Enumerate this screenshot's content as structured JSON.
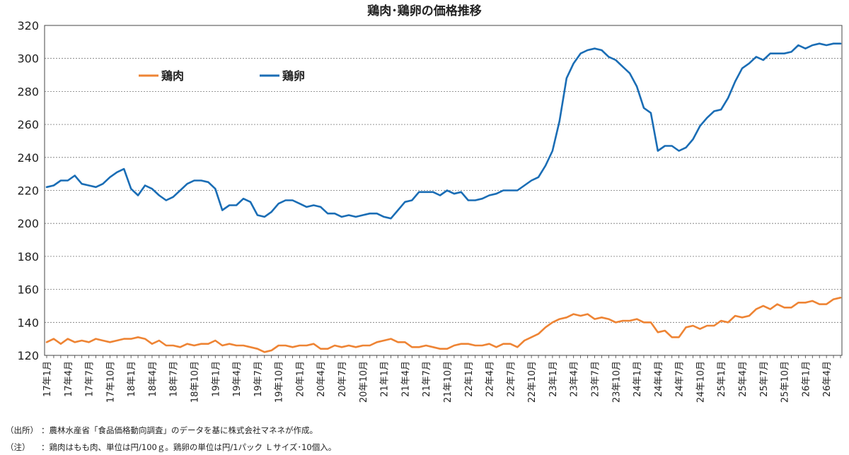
{
  "chart_data": {
    "type": "line",
    "title": "鶏肉･鶏卵の価格推移",
    "ylim": [
      120,
      320
    ],
    "yticks": [
      120,
      140,
      160,
      180,
      200,
      220,
      240,
      260,
      280,
      300,
      320
    ],
    "grid": true,
    "legend_position": "top-left",
    "x_tick_labels": [
      "17年1月",
      "17年4月",
      "17年7月",
      "17年10月",
      "18年1月",
      "18年4月",
      "18年7月",
      "18年10月",
      "19年1月",
      "19年4月",
      "19年7月",
      "19年10月",
      "20年1月",
      "20年4月",
      "20年7月",
      "20年10月",
      "21年1月",
      "21年4月",
      "21年7月",
      "21年10月",
      "22年1月",
      "22年4月",
      "22年7月",
      "22年10月",
      "23年1月",
      "23年4月",
      "23年7月",
      "23年10月",
      "24年1月",
      "24年4月",
      "24年7月",
      "24年10月",
      "25年1月",
      "25年4月",
      "25年7月",
      "25年10月",
      "26年1月",
      "26年4月"
    ],
    "series": [
      {
        "name": "鶏肉",
        "color": "#EE8434",
        "values": [
          128,
          130,
          127,
          130,
          128,
          129,
          128,
          130,
          129,
          128,
          129,
          130,
          130,
          131,
          130,
          127,
          129,
          126,
          126,
          125,
          127,
          126,
          127,
          127,
          129,
          126,
          127,
          126,
          126,
          125,
          124,
          122,
          123,
          126,
          126,
          125,
          126,
          126,
          127,
          124,
          124,
          126,
          125,
          126,
          125,
          126,
          126,
          128,
          129,
          130,
          128,
          128,
          125,
          125,
          126,
          125,
          124,
          124,
          126,
          127,
          127,
          126,
          126,
          127,
          125,
          127,
          127,
          125,
          129,
          131,
          133,
          137,
          140,
          142,
          143,
          145,
          144,
          145,
          142,
          143,
          142,
          140,
          141,
          141,
          142,
          140,
          140,
          134,
          135,
          131,
          131,
          137,
          138,
          136,
          138,
          138,
          141,
          140,
          144,
          143,
          144,
          148,
          150,
          148,
          151,
          149,
          149,
          152,
          152,
          153,
          151,
          151,
          154,
          155
        ]
      },
      {
        "name": "鶏卵",
        "color": "#1A6DB5",
        "values": [
          222,
          223,
          226,
          226,
          229,
          224,
          223,
          222,
          224,
          228,
          231,
          233,
          221,
          217,
          223,
          221,
          217,
          214,
          216,
          220,
          224,
          226,
          226,
          225,
          221,
          208,
          211,
          211,
          215,
          213,
          205,
          204,
          207,
          212,
          214,
          214,
          212,
          210,
          211,
          210,
          206,
          206,
          204,
          205,
          204,
          205,
          206,
          206,
          204,
          203,
          208,
          213,
          214,
          219,
          219,
          219,
          217,
          220,
          218,
          219,
          214,
          214,
          215,
          217,
          218,
          220,
          220,
          220,
          223,
          226,
          228,
          235,
          244,
          262,
          288,
          297,
          303,
          305,
          306,
          305,
          301,
          299,
          295,
          291,
          283,
          270,
          267,
          244,
          247,
          247,
          244,
          246,
          251,
          259,
          264,
          268,
          269,
          276,
          286,
          294,
          297,
          301,
          299,
          303,
          303,
          303,
          304,
          308,
          306,
          308,
          309,
          308,
          309,
          309
        ]
      }
    ]
  },
  "notes": {
    "source_label": "（出所）",
    "source_text": "：農林水産省「食品価格動向調査」のデータを基に株式会社マネネが作成。",
    "note_label": "（注）",
    "note_text": "：鶏肉はもも肉、単位は円/100ｇ。鶏卵の単位は円/1パック Ｌサイズ･10個入。"
  }
}
